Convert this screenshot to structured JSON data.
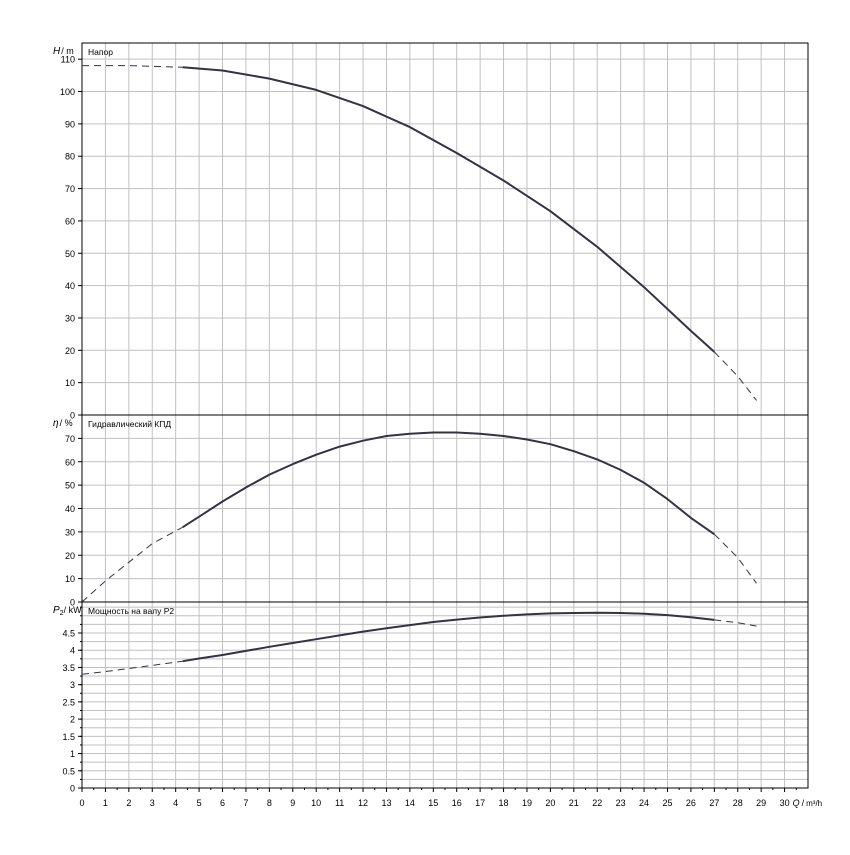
{
  "colors": {
    "grid": "#c0c0c0",
    "frame": "#000000",
    "curve": "#333344",
    "background": "#ffffff"
  },
  "x_axis": {
    "label_q": "Q",
    "label_sep": "/",
    "label_unit": "m³/h",
    "range": [
      0,
      31
    ],
    "ticks": [
      0,
      1,
      2,
      3,
      4,
      5,
      6,
      7,
      8,
      9,
      10,
      11,
      12,
      13,
      14,
      15,
      16,
      17,
      18,
      19,
      20,
      21,
      22,
      23,
      24,
      25,
      26,
      27,
      28,
      29,
      30
    ],
    "tick_labels": [
      "0",
      "1",
      "2",
      "3",
      "4",
      "5",
      "6",
      "7",
      "8",
      "9",
      "10",
      "11",
      "12",
      "13",
      "14",
      "15",
      "16",
      "17",
      "18",
      "19",
      "20",
      "21",
      "22",
      "23",
      "24",
      "25",
      "26",
      "27",
      "28",
      "29",
      "30"
    ]
  },
  "chart_data": [
    {
      "type": "line",
      "panel": "head",
      "title": "Напор",
      "ylabel_symbol": "H",
      "ylabel_unit": "m",
      "ylim": [
        0,
        115
      ],
      "grid": true,
      "y_ticks": [
        0,
        10,
        20,
        30,
        40,
        50,
        60,
        70,
        80,
        90,
        100,
        110
      ],
      "y_tick_labels": [
        "0",
        "10",
        "20",
        "30",
        "40",
        "50",
        "60",
        "70",
        "80",
        "90",
        "100",
        "110"
      ],
      "dashed_start": {
        "x": [
          0,
          2,
          4.3
        ],
        "y": [
          108,
          108,
          107.5
        ]
      },
      "solid": {
        "x": [
          4.3,
          6,
          8,
          10,
          12,
          14,
          16,
          18,
          20,
          22,
          24,
          26,
          27
        ],
        "y": [
          107.5,
          106.5,
          104,
          100.5,
          95.5,
          89,
          81,
          72.5,
          63,
          52,
          39.5,
          26,
          19.5
        ]
      },
      "dashed_end": {
        "x": [
          27,
          28,
          28.8
        ],
        "y": [
          19.5,
          12,
          4.5
        ]
      }
    },
    {
      "type": "line",
      "panel": "efficiency",
      "title": "Гидравлический КПД",
      "ylabel_symbol": "η",
      "ylabel_unit": "%",
      "ylim": [
        0,
        80
      ],
      "grid": true,
      "y_ticks": [
        0,
        10,
        20,
        30,
        40,
        50,
        60,
        70
      ],
      "y_tick_labels": [
        "0",
        "10",
        "20",
        "30",
        "40",
        "50",
        "60",
        "70"
      ],
      "dashed_start": {
        "x": [
          0,
          1,
          2,
          3,
          4.3
        ],
        "y": [
          0,
          9,
          17,
          25,
          32
        ]
      },
      "solid": {
        "x": [
          4.3,
          5,
          6,
          7,
          8,
          9,
          10,
          11,
          12,
          13,
          14,
          15,
          16,
          17,
          18,
          19,
          20,
          21,
          22,
          23,
          24,
          25,
          26,
          27
        ],
        "y": [
          32,
          36.5,
          43,
          49,
          54.5,
          59,
          63,
          66.5,
          69,
          71,
          72,
          72.5,
          72.5,
          72,
          71,
          69.5,
          67.5,
          64.5,
          61,
          56.5,
          51,
          44,
          36,
          29
        ]
      },
      "dashed_end": {
        "x": [
          27,
          28,
          28.8
        ],
        "y": [
          29,
          19,
          8
        ]
      }
    },
    {
      "type": "line",
      "panel": "power",
      "title": "Мощность на валу P2",
      "ylabel_symbol": "P",
      "ylabel_sub": "2",
      "ylabel_unit": "kW",
      "ylim": [
        0,
        5.4
      ],
      "grid": true,
      "y_ticks": [
        0,
        0.5,
        1,
        1.5,
        2,
        2.5,
        3,
        3.5,
        4,
        4.5
      ],
      "y_tick_labels": [
        "0",
        "0.5",
        "1",
        "1.5",
        "2",
        "2.5",
        "3",
        "3.5",
        "4",
        "4.5"
      ],
      "minor_y_step": 0.25,
      "dashed_start": {
        "x": [
          0,
          1,
          2,
          3,
          4.3
        ],
        "y": [
          3.3,
          3.38,
          3.47,
          3.56,
          3.68
        ]
      },
      "solid": {
        "x": [
          4.3,
          5,
          6,
          7,
          8,
          9,
          10,
          11,
          12,
          13,
          14,
          15,
          16,
          17,
          18,
          19,
          20,
          21,
          22,
          23,
          24,
          25,
          26,
          27
        ],
        "y": [
          3.68,
          3.76,
          3.86,
          3.98,
          4.1,
          4.21,
          4.32,
          4.43,
          4.54,
          4.64,
          4.73,
          4.82,
          4.89,
          4.95,
          5.0,
          5.04,
          5.07,
          5.08,
          5.09,
          5.08,
          5.06,
          5.02,
          4.96,
          4.88
        ]
      },
      "dashed_end": {
        "x": [
          27,
          28,
          28.8
        ],
        "y": [
          4.88,
          4.8,
          4.7
        ]
      }
    }
  ]
}
